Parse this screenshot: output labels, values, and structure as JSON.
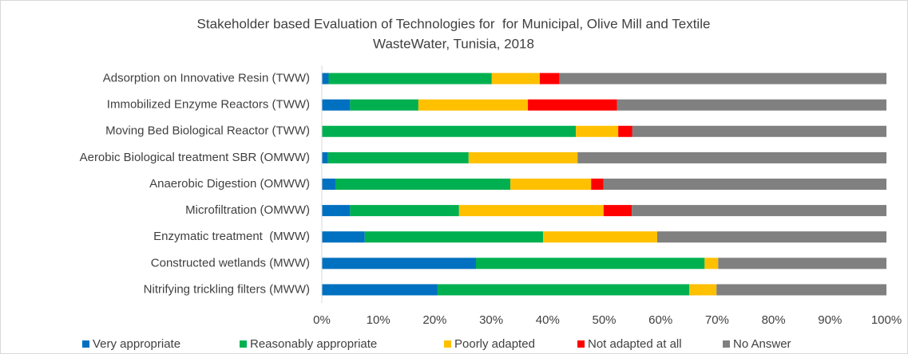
{
  "chart_data": {
    "type": "stacked_barh",
    "title": [
      "Stakeholder based Evaluation of Technologies for  for Municipal, Olive Mill and Textile",
      "WasteWater, Tunisia, 2018"
    ],
    "categories": [
      "Adsorption on Innovative Resin (TWW)",
      "Immobilized Enzyme Reactors (TWW)",
      "Moving Bed Biological Reactor (TWW)",
      "Aerobic Biological treatment SBR (OMWW)",
      "Anaerobic Digestion (OMWW)",
      "Microfiltration (OMWW)",
      "Enzymatic treatment  (MWW)",
      "Constructed wetlands (MWW)",
      "Nitrifying trickling filters (MWW)"
    ],
    "series": [
      {
        "name": "Very appropriate",
        "color": "#0070c0",
        "values": [
          1.2,
          5.0,
          0,
          1.1,
          2.4,
          5.0,
          7.6,
          27.3,
          20.5
        ]
      },
      {
        "name": "Reasonably appropriate",
        "color": "#00b050",
        "values": [
          28.9,
          12.1,
          45.0,
          24.9,
          31.0,
          19.3,
          31.6,
          40.5,
          44.6
        ]
      },
      {
        "name": "Poorly adapted",
        "color": "#ffc000",
        "values": [
          8.5,
          19.4,
          7.5,
          19.3,
          14.3,
          25.6,
          20.2,
          2.4,
          4.8
        ]
      },
      {
        "name": "Not adapted at all",
        "color": "#ff0000",
        "values": [
          3.5,
          15.8,
          2.5,
          0,
          2.2,
          5.0,
          0,
          0,
          0
        ]
      },
      {
        "name": "No Answer",
        "color": "#808080",
        "values": [
          57.9,
          47.7,
          45.0,
          54.7,
          50.1,
          45.1,
          40.6,
          29.8,
          30.1
        ]
      }
    ],
    "xlim": [
      0,
      100
    ],
    "xticks": [
      {
        "value": 0,
        "label": "0%"
      },
      {
        "value": 10,
        "label": "10%"
      },
      {
        "value": 20,
        "label": "20%"
      },
      {
        "value": 30,
        "label": "30%"
      },
      {
        "value": 40,
        "label": "40%"
      },
      {
        "value": 50,
        "label": "50%"
      },
      {
        "value": 60,
        "label": "60%"
      },
      {
        "value": 70,
        "label": "70%"
      },
      {
        "value": 80,
        "label": "80%"
      },
      {
        "value": 90,
        "label": "90%"
      },
      {
        "value": 100,
        "label": "100%"
      }
    ],
    "legend": "bottom"
  }
}
